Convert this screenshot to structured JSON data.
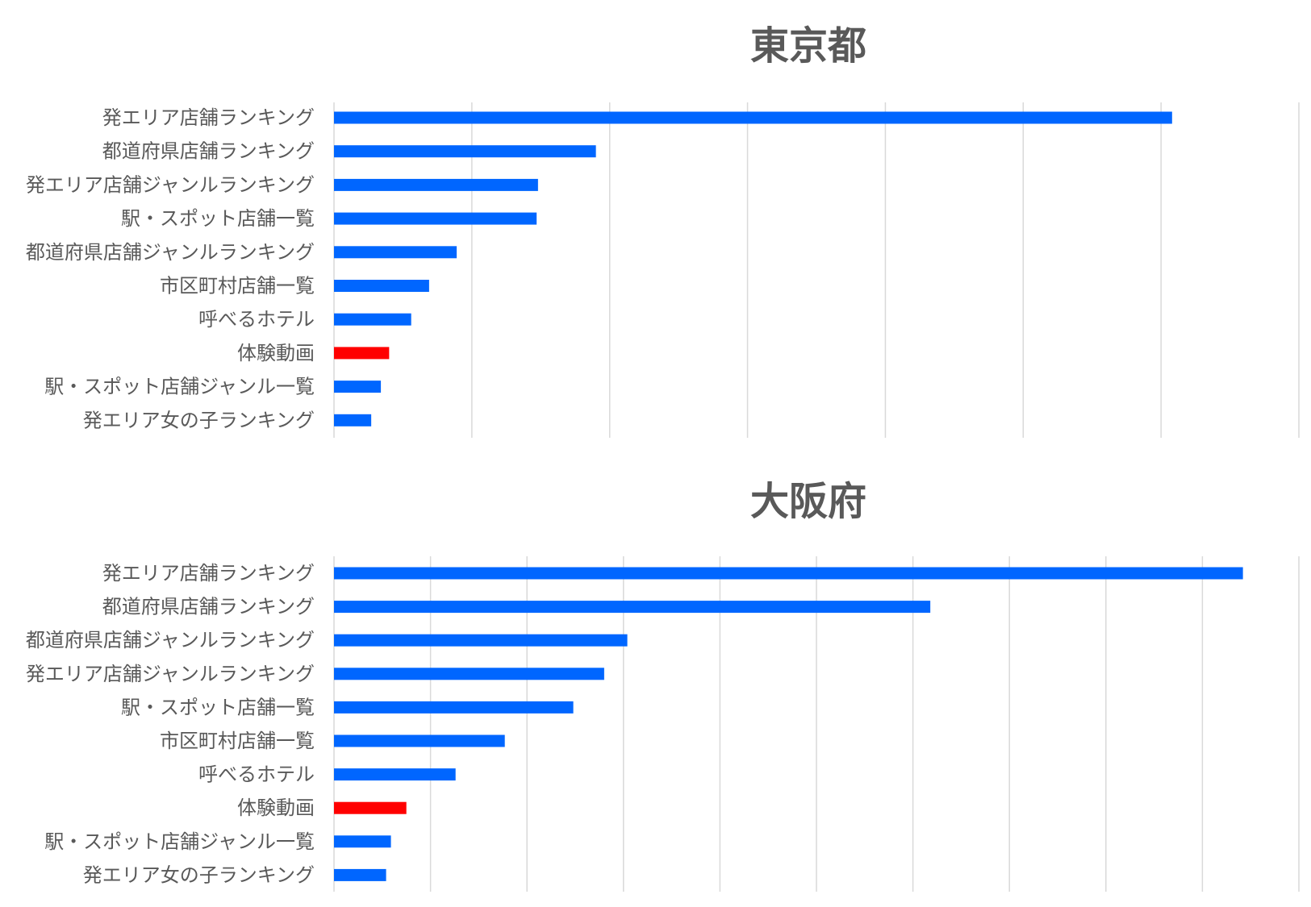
{
  "chart_data": [
    {
      "type": "bar",
      "orientation": "horizontal",
      "title": "東京都",
      "categories": [
        "発エリア店舗ランキング",
        "都道府県店舗ランキング",
        "発エリア店舗ジャンルランキング",
        "駅・スポット店舗一覧",
        "都道府県店舗ジャンルランキング",
        "市区町村店舗一覧",
        "呼べるホテル",
        "体験動画",
        "駅・スポット店舗ジャンル一覧",
        "発エリア女の子ランキング"
      ],
      "values": [
        6.08,
        1.9,
        1.48,
        1.47,
        0.89,
        0.69,
        0.56,
        0.4,
        0.34,
        0.27
      ],
      "xlim": [
        0,
        7
      ],
      "grid": true,
      "gridlines": 7,
      "highlight": "体験動画",
      "bar_color": "#0066ff",
      "highlight_color": "#ff0000"
    },
    {
      "type": "bar",
      "orientation": "horizontal",
      "title": "大阪府",
      "categories": [
        "発エリア店舗ランキング",
        "都道府県店舗ランキング",
        "都道府県店舗ジャンルランキング",
        "発エリア店舗ジャンルランキング",
        "駅・スポット店舗一覧",
        "市区町村店舗一覧",
        "呼べるホテル",
        "体験動画",
        "駅・スポット店舗ジャンル一覧",
        "発エリア女の子ランキング"
      ],
      "values": [
        9.42,
        6.18,
        3.04,
        2.8,
        2.48,
        1.77,
        1.26,
        0.75,
        0.59,
        0.54
      ],
      "xlim": [
        0,
        10
      ],
      "grid": true,
      "gridlines": 10,
      "highlight": "体験動画",
      "bar_color": "#0066ff",
      "highlight_color": "#ff0000"
    }
  ]
}
